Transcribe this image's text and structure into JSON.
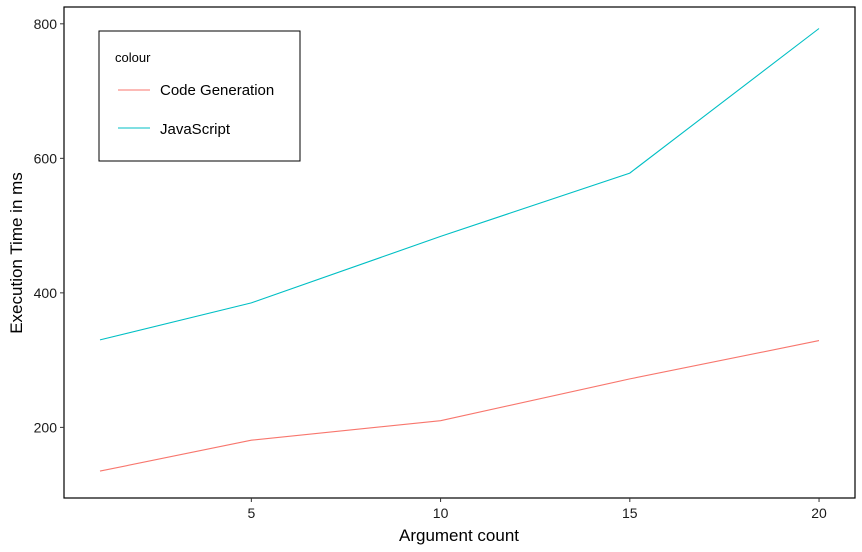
{
  "chart_data": {
    "type": "line",
    "xlabel": "Argument count",
    "ylabel": "Execution Time in ms",
    "x": [
      1,
      5,
      10,
      15,
      20
    ],
    "xticks": [
      5,
      10,
      15,
      20
    ],
    "yticks": [
      200,
      400,
      600,
      800
    ],
    "xlim": [
      0.05,
      20.95
    ],
    "ylim": [
      95,
      825
    ],
    "grid": false,
    "legend": {
      "title": "colour",
      "position": "top-left"
    },
    "series": [
      {
        "name": "Code Generation",
        "color": "#F8766D",
        "values": [
          135,
          181,
          210,
          272,
          329
        ]
      },
      {
        "name": "JavaScript",
        "color": "#00BFC4",
        "values": [
          330,
          385,
          484,
          578,
          793
        ]
      }
    ]
  }
}
